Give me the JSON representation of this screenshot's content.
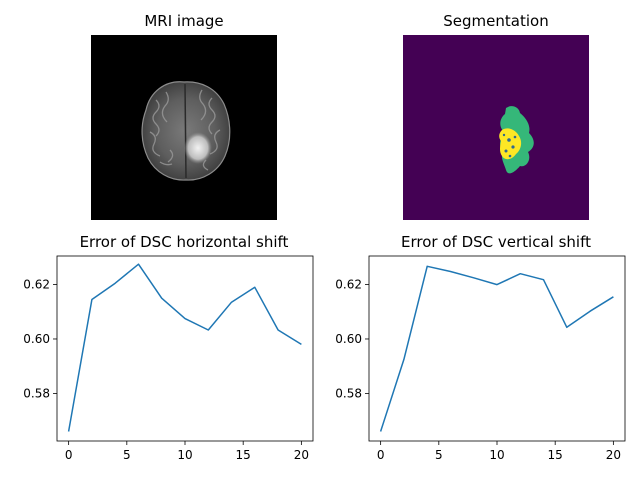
{
  "panels": {
    "mri": {
      "title": "MRI image"
    },
    "segmentation": {
      "title": "Segmentation"
    }
  },
  "colors": {
    "line": "#1f77b4",
    "seg_background": "#440154",
    "seg_green": "#35b779",
    "seg_yellow": "#fde725",
    "seg_teal": "#31688e"
  },
  "chart_data": [
    {
      "type": "line",
      "title": "Error of DSC horizontal shift",
      "xlabel": "",
      "ylabel": "",
      "x": [
        0,
        2,
        4,
        6,
        8,
        10,
        12,
        14,
        16,
        18,
        20
      ],
      "series": [
        {
          "values": [
            0.566,
            0.6145,
            0.6205,
            0.6275,
            0.615,
            0.6075,
            0.6033,
            0.6135,
            0.619,
            0.6033,
            0.598
          ]
        }
      ],
      "xlim": [
        -1,
        21
      ],
      "ylim": [
        0.5625,
        0.6305
      ],
      "xticks": [
        0,
        5,
        10,
        15,
        20
      ],
      "yticks": [
        0.58,
        0.6,
        0.62
      ],
      "xtick_labels": [
        "0",
        "5",
        "10",
        "15",
        "20"
      ],
      "ytick_labels": [
        "0.58",
        "0.60",
        "0.62"
      ],
      "grid": false,
      "legend": "none"
    },
    {
      "type": "line",
      "title": "Error of DSC vertical shift",
      "xlabel": "",
      "ylabel": "",
      "x": [
        0,
        2,
        4,
        6,
        8,
        10,
        12,
        14,
        16,
        18,
        20
      ],
      "series": [
        {
          "values": [
            0.566,
            0.5925,
            0.6267,
            0.6248,
            0.6225,
            0.62,
            0.624,
            0.6218,
            0.6043,
            0.6102,
            0.6155
          ]
        }
      ],
      "xlim": [
        -1,
        21
      ],
      "ylim": [
        0.5625,
        0.6305
      ],
      "xticks": [
        0,
        5,
        10,
        15,
        20
      ],
      "yticks": [
        0.58,
        0.6,
        0.62
      ],
      "xtick_labels": [
        "0",
        "5",
        "10",
        "15",
        "20"
      ],
      "ytick_labels": [
        "0.58",
        "0.60",
        "0.62"
      ],
      "grid": false,
      "legend": "none"
    }
  ]
}
